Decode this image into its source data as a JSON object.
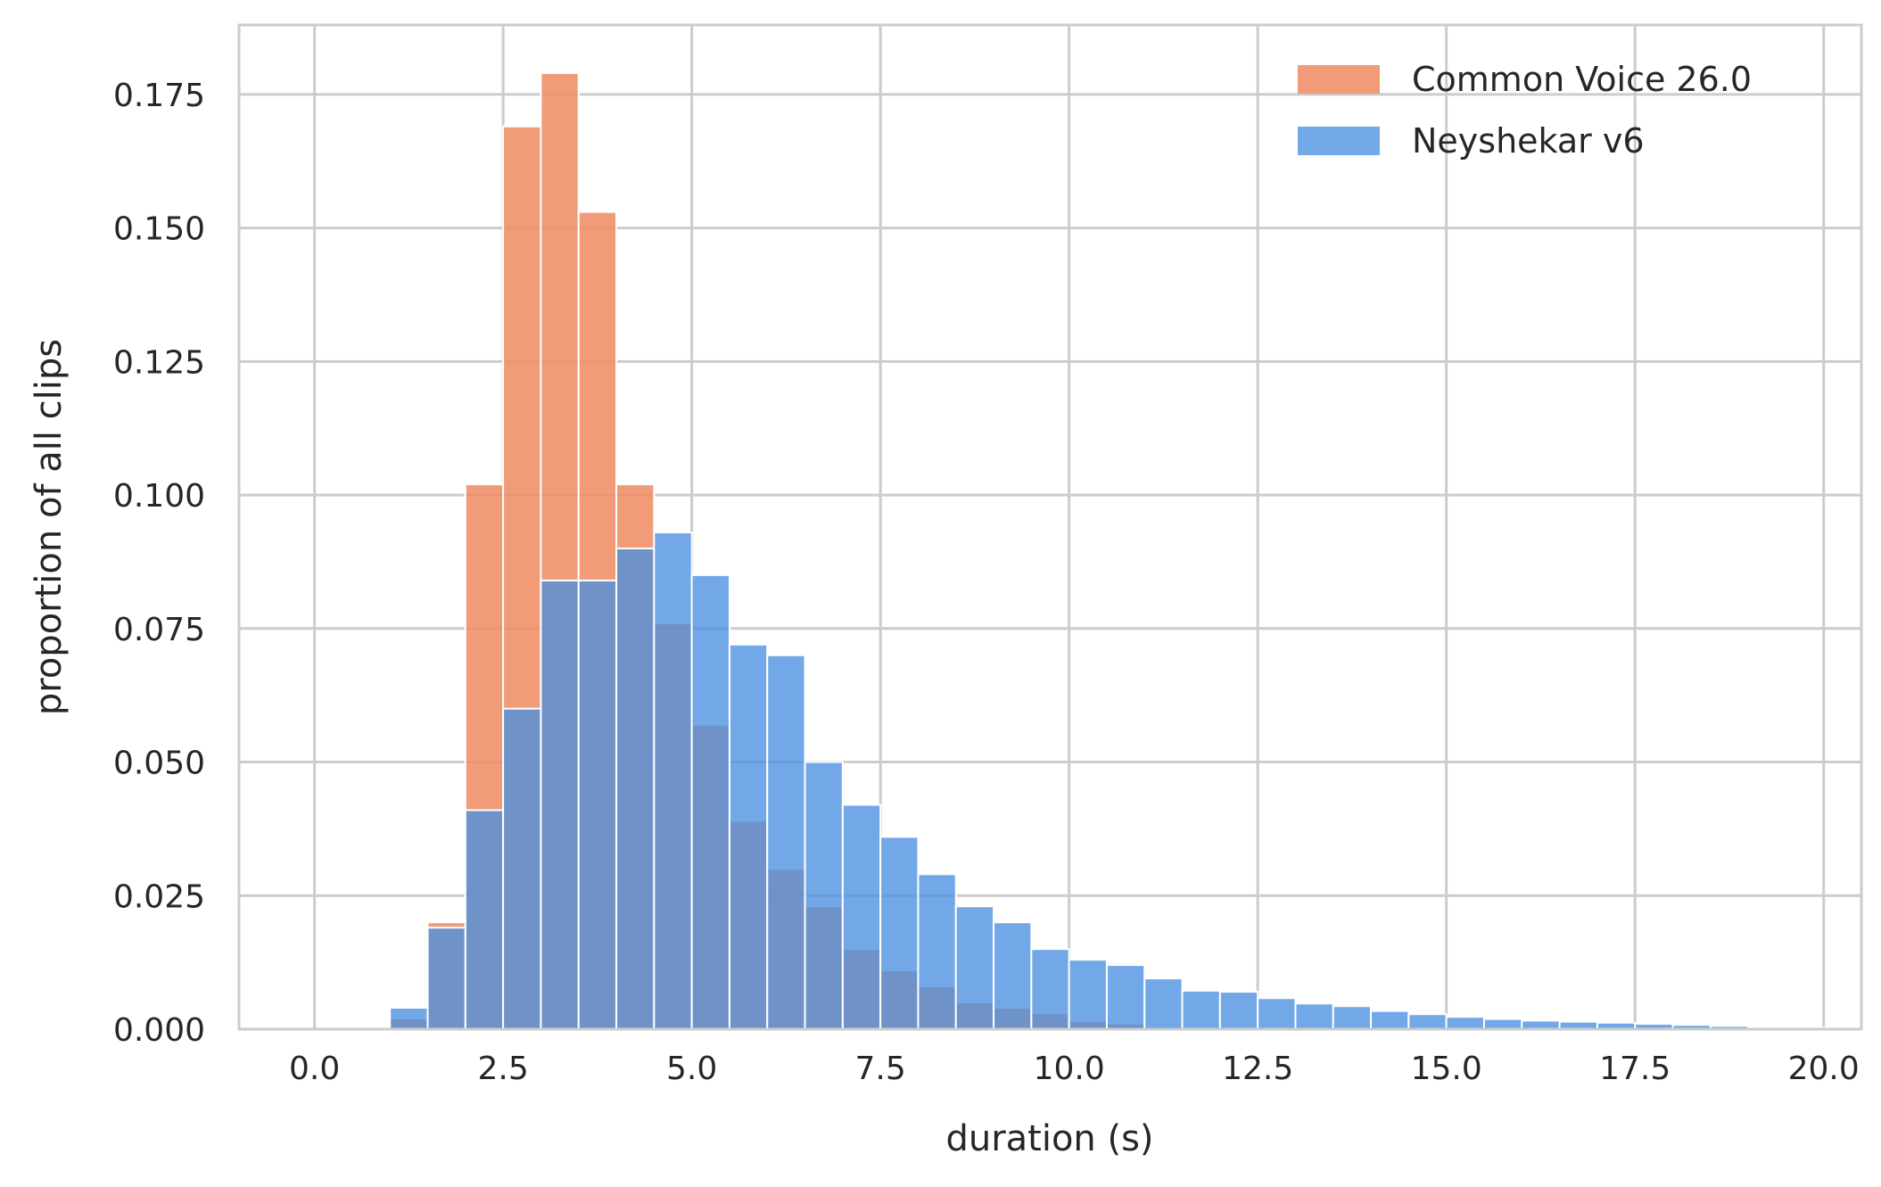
{
  "chart_data": {
    "type": "bar",
    "title": "",
    "xlabel": "duration (s)",
    "ylabel": "proportion of all clips",
    "xlim": [
      -1.0,
      20.5
    ],
    "ylim": [
      0.0,
      0.188
    ],
    "xticks": [
      0.0,
      2.5,
      5.0,
      7.5,
      10.0,
      12.5,
      15.0,
      17.5,
      20.0
    ],
    "xtick_labels": [
      "0.0",
      "2.5",
      "5.0",
      "7.5",
      "10.0",
      "12.5",
      "15.0",
      "17.5",
      "20.0"
    ],
    "yticks": [
      0.0,
      0.025,
      0.05,
      0.075,
      0.1,
      0.125,
      0.15,
      0.175
    ],
    "ytick_labels": [
      "0.000",
      "0.025",
      "0.050",
      "0.075",
      "0.100",
      "0.125",
      "0.150",
      "0.175"
    ],
    "grid": true,
    "legend_position": "top-right",
    "bin_edges": [
      1.0,
      1.5,
      2.0,
      2.5,
      3.0,
      3.5,
      4.0,
      4.5,
      5.0,
      5.5,
      6.0,
      6.5,
      7.0,
      7.5,
      8.0,
      8.5,
      9.0,
      9.5,
      10.0,
      10.5,
      11.0,
      11.5,
      12.0,
      12.5,
      13.0,
      13.5,
      14.0,
      14.5,
      15.0,
      15.5,
      16.0,
      16.5,
      17.0,
      17.5,
      18.0,
      18.5,
      19.0,
      19.5,
      20.0
    ],
    "series": [
      {
        "name": "Common Voice 26.0",
        "color": "#ee8a62",
        "values": [
          0.002,
          0.02,
          0.102,
          0.169,
          0.179,
          0.153,
          0.102,
          0.076,
          0.057,
          0.039,
          0.03,
          0.023,
          0.015,
          0.011,
          0.008,
          0.005,
          0.004,
          0.003,
          0.0015,
          0.001,
          0.0005,
          0.0003,
          0.0002,
          0.0001,
          0.0001,
          0.0,
          0.0,
          0.0,
          0.0,
          0.0,
          0.0,
          0.0,
          0.0,
          0.0,
          0.0,
          0.0,
          0.0,
          0.0
        ]
      },
      {
        "name": "Neyshekar v6",
        "color": "#4a8fe0",
        "values": [
          0.004,
          0.019,
          0.041,
          0.06,
          0.084,
          0.084,
          0.09,
          0.093,
          0.085,
          0.072,
          0.07,
          0.05,
          0.042,
          0.036,
          0.029,
          0.023,
          0.02,
          0.015,
          0.013,
          0.012,
          0.0095,
          0.0072,
          0.007,
          0.0058,
          0.0048,
          0.0043,
          0.0034,
          0.0028,
          0.0023,
          0.0019,
          0.0016,
          0.0014,
          0.0012,
          0.001,
          0.0008,
          0.0006,
          0.0004,
          0.0003
        ]
      }
    ]
  }
}
